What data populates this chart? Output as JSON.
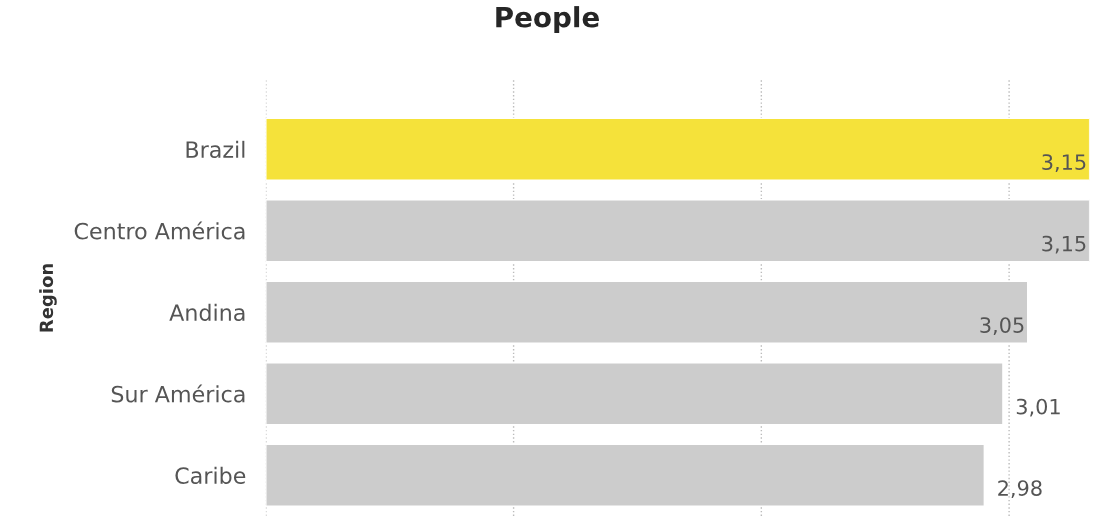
{
  "chart_data": {
    "type": "bar",
    "orientation": "horizontal",
    "title": "People",
    "ylabel": "Region",
    "categories": [
      "Brazil",
      "Centro América",
      "Andina",
      "Sur América",
      "Caribe"
    ],
    "values": [
      3.15,
      3.15,
      3.05,
      3.01,
      2.98
    ],
    "value_labels": [
      "3,15",
      "3,15",
      "3,05",
      "3,01",
      "2,98"
    ],
    "colors": [
      "#f5e23a",
      "#cccccc",
      "#cccccc",
      "#cccccc",
      "#cccccc"
    ],
    "xlim": [
      1.82,
      3.15
    ],
    "xticks": [
      {
        "value": 1.82,
        "label": null
      },
      {
        "value": 2.22,
        "label": null
      },
      {
        "value": 2.62,
        "label": null
      },
      {
        "value": 3.02,
        "label": null
      }
    ],
    "grid": "x",
    "tick_labels": "y",
    "legend": false
  }
}
